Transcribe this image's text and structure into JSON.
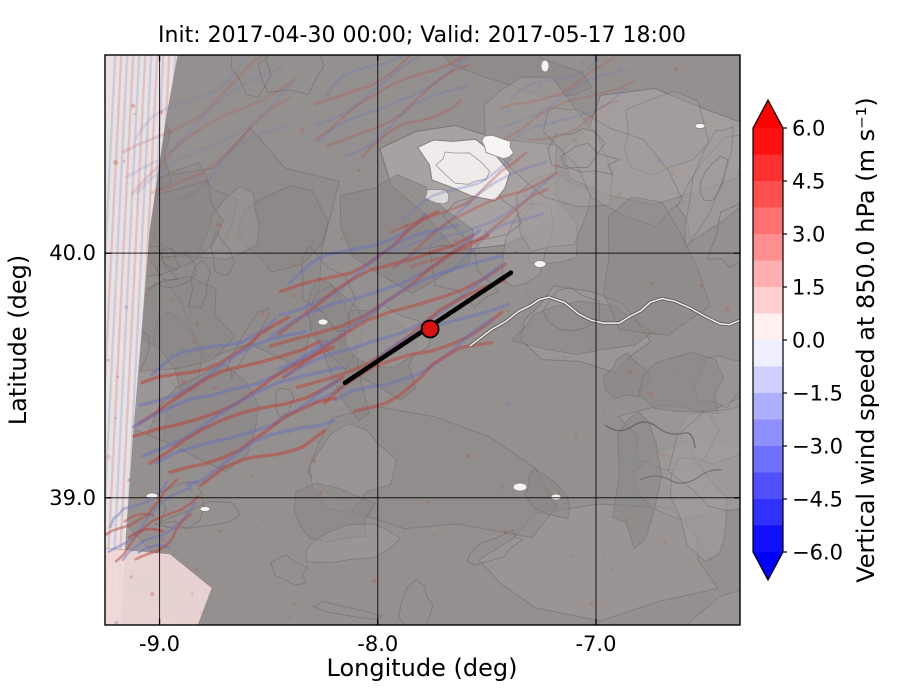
{
  "figure": {
    "title": "Init: 2017-04-30 00:00; Valid: 2017-05-17 18:00",
    "background_color": "#ffffff"
  },
  "axes": {
    "xlabel": "Longitude (deg)",
    "ylabel": "Latitude (deg)",
    "xlim": [
      -9.25,
      -6.34
    ],
    "ylim": [
      38.48,
      40.81
    ],
    "xticks": [
      {
        "value": -9.0,
        "label": "-9.0"
      },
      {
        "value": -8.0,
        "label": "-8.0"
      },
      {
        "value": -7.0,
        "label": "-7.0"
      }
    ],
    "yticks": [
      {
        "value": 40.0,
        "label": "40.0"
      },
      {
        "value": 39.0,
        "label": "39.0"
      }
    ],
    "grid": true,
    "grid_color": "#000000"
  },
  "colorbar": {
    "label": "Vertical wind speed at 850.0 hPa (m s⁻¹)",
    "vmin": -6.0,
    "vmax": 6.0,
    "segment_step": 0.75,
    "extend": "both",
    "cmap": "bwr",
    "ticks": [
      {
        "value": 6.0,
        "label": "6.0"
      },
      {
        "value": 4.5,
        "label": "4.5"
      },
      {
        "value": 3.0,
        "label": "3.0"
      },
      {
        "value": 1.5,
        "label": "1.5"
      },
      {
        "value": 0.0,
        "label": "0.0"
      },
      {
        "value": -1.5,
        "label": "−1.5"
      },
      {
        "value": -3.0,
        "label": "−3.0"
      },
      {
        "value": -4.5,
        "label": "−4.5"
      },
      {
        "value": -6.0,
        "label": "−6.0"
      }
    ]
  },
  "overlays": {
    "transect": {
      "lon1": -8.15,
      "lat1": 39.47,
      "lon2": -7.39,
      "lat2": 39.92,
      "color": "#000000"
    },
    "marker": {
      "lon": -7.76,
      "lat": 39.69,
      "color": "#dd1111",
      "edge_color": "#000000"
    }
  },
  "map_colors": {
    "land_gray": "#949090",
    "light_gray": "#aba5a5",
    "contour_gray": "#6b6666",
    "ocean_light": "#ebe5e5",
    "updraft_red": "#b9463c",
    "downdraft_blue": "#6470be",
    "snow_white": "#f2efef"
  },
  "chart_data": {
    "type": "heatmap",
    "title": "Init: 2017-04-30 00:00; Valid: 2017-05-17 18:00",
    "xlabel": "Longitude (deg)",
    "ylabel": "Latitude (deg)",
    "xlim": [
      -9.25,
      -6.34
    ],
    "ylim": [
      38.48,
      40.81
    ],
    "xticks": [
      -9.0,
      -8.0,
      -7.0
    ],
    "yticks": [
      39.0,
      40.0
    ],
    "colorbar": {
      "label": "Vertical wind speed at 850.0 hPa (m s⁻¹)",
      "ticks": [
        6.0,
        4.5,
        3.0,
        1.5,
        0.0,
        -1.5,
        -3.0,
        -4.5,
        -6.0
      ],
      "range": [
        -6.0,
        6.0
      ],
      "extend": "both",
      "cmap": "blue-white-red"
    },
    "field_description": "2-D vertical wind speed field at 850 hPa over western Iberia shown over gray terrain shading; values mostly near 0 m/s with trapped mountain-wave trains of alternating updrafts (red) and downdrafts (blue)",
    "background_value": 0.0,
    "features": [
      {
        "name": "central-mountain-wave-train",
        "lon_range": [
          -8.6,
          -7.5
        ],
        "lat_range": [
          39.6,
          40.2
        ],
        "amplitude_ms": 1.5
      },
      {
        "name": "southwest-wave-train",
        "lon_range": [
          -9.1,
          -8.2
        ],
        "lat_range": [
          39.0,
          39.6
        ],
        "amplitude_ms": 1.2
      },
      {
        "name": "faint-northern-waves",
        "lon_range": [
          -8.4,
          -7.3
        ],
        "lat_range": [
          40.5,
          40.8
        ],
        "amplitude_ms": 0.5
      },
      {
        "name": "coastal-strip-weak-positive",
        "lon_range": [
          -9.25,
          -8.95
        ],
        "lat_range": [
          38.5,
          40.8
        ],
        "amplitude_ms": 0.3
      },
      {
        "name": "high-terrain-white-patch",
        "lon_range": [
          -7.75,
          -7.35
        ],
        "lat_range": [
          40.25,
          40.55
        ],
        "amplitude_ms": 0.0
      }
    ],
    "cross_section_line": {
      "from_lonlat": [
        -8.15,
        39.47
      ],
      "to_lonlat": [
        -7.39,
        39.92
      ]
    },
    "station_marker_lonlat": [
      -7.76,
      39.69
    ]
  }
}
